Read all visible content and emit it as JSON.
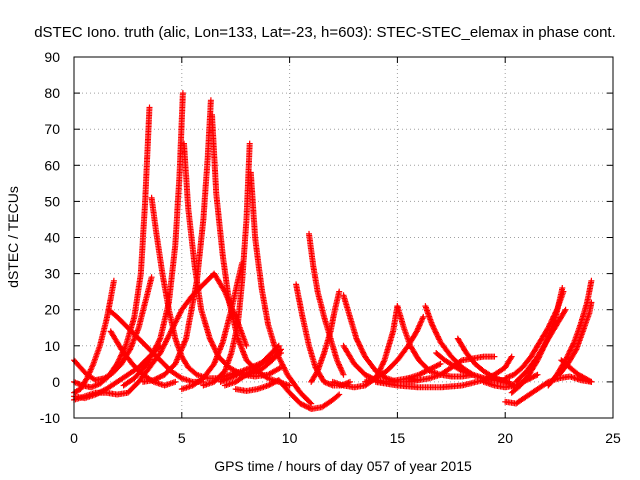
{
  "chart_data": {
    "type": "scatter",
    "title": "dSTEC Iono. truth (alic, Lon=133, Lat=-23, h=603): STEC-STEC_elemax in phase cont.",
    "xlabel": "GPS time / hours of day 057 of year 2015",
    "ylabel": "dSTEC  / TECUs",
    "xlim": [
      0,
      25
    ],
    "ylim": [
      -10,
      90
    ],
    "xticks": [
      0,
      5,
      10,
      15,
      20,
      25
    ],
    "yticks": [
      -10,
      0,
      10,
      20,
      30,
      40,
      50,
      60,
      70,
      80,
      90
    ],
    "grid": true,
    "marker": "plus",
    "color": "#ff0000",
    "series": [
      {
        "x": [
          0.0,
          0.3,
          0.6,
          0.9,
          1.2,
          1.5,
          1.7,
          1.85
        ],
        "y": [
          -3.0,
          -2.0,
          1.0,
          5.0,
          10.0,
          17.0,
          23.0,
          28.0
        ]
      },
      {
        "x": [
          0.0,
          0.4,
          0.8,
          1.2,
          1.6,
          2.0,
          2.4,
          2.8,
          3.1,
          3.3,
          3.5
        ],
        "y": [
          0.0,
          -1.0,
          -1.5,
          -0.5,
          1.5,
          5.0,
          10.0,
          18.0,
          30.0,
          50.0,
          76.0
        ]
      },
      {
        "x": [
          0.0,
          0.3,
          0.6,
          1.0,
          1.4,
          1.8,
          2.2,
          2.6,
          3.0,
          3.3,
          3.6
        ],
        "y": [
          6.0,
          4.0,
          2.0,
          0.5,
          1.0,
          2.5,
          5.0,
          9.0,
          15.0,
          22.0,
          29.0
        ]
      },
      {
        "x": [
          0.0,
          0.5,
          1.0,
          1.5,
          2.0,
          2.5,
          3.0,
          3.5,
          4.0,
          4.5,
          5.0,
          5.5,
          6.0,
          6.5,
          7.0,
          7.5,
          8.0
        ],
        "y": [
          -5.0,
          -4.0,
          -3.0,
          -3.0,
          -3.5,
          -3.0,
          0.0,
          4.0,
          8.0,
          14.0,
          20.0,
          24.0,
          27.0,
          30.0,
          25.0,
          18.0,
          10.0
        ]
      },
      {
        "x": [
          1.6,
          2.0,
          2.5,
          3.0,
          3.5,
          4.0,
          4.5,
          5.0,
          5.5,
          6.0
        ],
        "y": [
          20.0,
          18.0,
          15.0,
          12.0,
          9.0,
          6.0,
          3.0,
          1.0,
          0.0,
          0.0
        ]
      },
      {
        "x": [
          1.7,
          2.2,
          2.7,
          3.2,
          3.7,
          4.2,
          4.7
        ],
        "y": [
          14.0,
          9.0,
          5.0,
          2.0,
          0.0,
          -1.0,
          0.0
        ]
      },
      {
        "x": [
          3.6,
          3.8,
          4.1,
          4.4,
          4.7,
          5.0,
          5.3,
          5.7,
          6.2,
          6.7,
          7.2,
          7.8,
          8.4,
          9.0,
          9.6
        ],
        "y": [
          51.0,
          42.0,
          30.0,
          20.0,
          12.0,
          7.0,
          4.0,
          2.0,
          1.0,
          1.0,
          2.0,
          3.0,
          4.5,
          6.0,
          8.0
        ]
      },
      {
        "x": [
          2.3,
          2.8,
          3.4,
          4.0,
          4.4,
          4.7,
          4.9,
          5.05
        ],
        "y": [
          -1.0,
          1.0,
          5.0,
          12.0,
          22.0,
          38.0,
          58.0,
          80.0
        ]
      },
      {
        "x": [
          5.1,
          5.3,
          5.6,
          5.9,
          6.3,
          6.7,
          7.2,
          7.8,
          8.4,
          9.0,
          9.6
        ],
        "y": [
          66.0,
          48.0,
          32.0,
          20.0,
          12.0,
          7.0,
          4.0,
          2.0,
          1.5,
          2.0,
          4.0
        ]
      },
      {
        "x": [
          3.2,
          3.7,
          4.2,
          4.7,
          5.2,
          5.7,
          6.0,
          6.2,
          6.35
        ],
        "y": [
          0.0,
          0.5,
          2.0,
          5.0,
          12.0,
          28.0,
          45.0,
          62.0,
          78.0
        ]
      },
      {
        "x": [
          6.4,
          6.6,
          6.9,
          7.2,
          7.6,
          8.0,
          8.5,
          9.0,
          9.5,
          10.0
        ],
        "y": [
          74.0,
          52.0,
          35.0,
          22.0,
          12.0,
          6.0,
          3.0,
          1.0,
          0.0,
          -1.0
        ]
      },
      {
        "x": [
          5.0,
          5.5,
          6.0,
          6.5,
          6.9,
          7.3,
          7.6,
          7.8
        ],
        "y": [
          -2.0,
          -1.0,
          1.0,
          5.0,
          11.0,
          20.0,
          28.0,
          33.0
        ]
      },
      {
        "x": [
          6.0,
          6.5,
          7.0,
          7.3,
          7.6,
          7.8,
          8.0,
          8.15
        ],
        "y": [
          -1.0,
          0.0,
          3.0,
          8.0,
          16.0,
          28.0,
          45.0,
          66.0
        ]
      },
      {
        "x": [
          8.2,
          8.4,
          8.7,
          9.0,
          9.4,
          9.9,
          10.5,
          11.0
        ],
        "y": [
          58.0,
          40.0,
          26.0,
          16.0,
          8.0,
          2.0,
          -3.0,
          -6.0
        ]
      },
      {
        "x": [
          7.5,
          8.0,
          8.5,
          9.0,
          9.5,
          10.0,
          10.5,
          11.0,
          11.5,
          12.0,
          12.3
        ],
        "y": [
          -2.0,
          -2.5,
          -2.0,
          -1.0,
          0.5,
          -3.0,
          -6.0,
          -7.5,
          -7.0,
          -5.0,
          -3.5
        ]
      },
      {
        "x": [
          7.0,
          7.5,
          8.0,
          8.5,
          9.0,
          9.5
        ],
        "y": [
          -1.0,
          0.0,
          2.0,
          4.0,
          7.0,
          10.0
        ]
      },
      {
        "x": [
          6.8,
          7.2,
          7.6,
          8.0,
          8.4,
          8.8,
          9.2,
          9.6
        ],
        "y": [
          0.0,
          1.0,
          2.0,
          2.0,
          2.5,
          4.0,
          6.0,
          9.0
        ]
      },
      {
        "x": [
          10.3,
          10.6,
          10.9,
          11.2,
          11.6,
          12.0,
          12.4,
          12.8
        ],
        "y": [
          27.0,
          18.0,
          10.0,
          4.0,
          0.0,
          -1.0,
          -1.0,
          0.0
        ]
      },
      {
        "x": [
          10.9,
          11.1,
          11.3,
          11.6,
          11.9,
          12.2,
          12.5
        ],
        "y": [
          41.0,
          32.0,
          25.0,
          18.0,
          12.0,
          6.0,
          2.0
        ]
      },
      {
        "x": [
          11.0,
          11.3,
          11.6,
          11.9,
          12.1,
          12.3
        ],
        "y": [
          0.0,
          3.0,
          8.0,
          14.0,
          20.0,
          25.0
        ]
      },
      {
        "x": [
          12.5,
          12.8,
          13.1,
          13.5,
          14.0,
          14.5,
          15.0,
          15.5,
          16.0
        ],
        "y": [
          24.0,
          18.0,
          12.0,
          7.0,
          3.0,
          1.0,
          0.0,
          0.0,
          0.5
        ]
      },
      {
        "x": [
          12.5,
          13.0,
          13.5,
          14.0,
          14.5,
          15.0,
          15.5,
          16.0,
          16.5,
          17.0
        ],
        "y": [
          10.0,
          5.0,
          2.0,
          0.5,
          0.0,
          0.5,
          1.0,
          2.0,
          3.5,
          5.0
        ]
      },
      {
        "x": [
          12.0,
          12.5,
          13.0,
          13.5,
          14.0,
          14.4,
          14.8,
          15.0
        ],
        "y": [
          0.0,
          -1.0,
          -1.5,
          -1.0,
          1.0,
          6.0,
          14.0,
          21.0
        ]
      },
      {
        "x": [
          15.0,
          15.3,
          15.6,
          16.0,
          16.5,
          17.0,
          17.5,
          18.0,
          18.5
        ],
        "y": [
          21.0,
          15.0,
          10.0,
          6.0,
          3.0,
          2.0,
          1.5,
          1.5,
          2.0
        ]
      },
      {
        "x": [
          13.5,
          14.0,
          14.5,
          15.0,
          15.5,
          15.9,
          16.2
        ],
        "y": [
          0.0,
          1.0,
          3.0,
          6.0,
          10.0,
          14.0,
          18.0
        ]
      },
      {
        "x": [
          16.3,
          16.6,
          17.0,
          17.5,
          18.0,
          18.5,
          19.0,
          19.5,
          20.0
        ],
        "y": [
          21.0,
          16.0,
          11.0,
          7.0,
          4.0,
          2.0,
          1.0,
          0.5,
          0.5
        ]
      },
      {
        "x": [
          15.5,
          16.0,
          16.5,
          17.0,
          17.5,
          18.0,
          18.5,
          19.0,
          19.5
        ],
        "y": [
          1.0,
          0.5,
          1.0,
          2.0,
          4.0,
          6.0,
          6.5,
          7.0,
          7.0
        ]
      },
      {
        "x": [
          16.8,
          17.2,
          17.6,
          18.0,
          18.5,
          19.0,
          19.5,
          20.0,
          20.4
        ],
        "y": [
          8.0,
          6.0,
          4.5,
          3.0,
          2.0,
          1.0,
          0.5,
          0.0,
          -1.0
        ]
      },
      {
        "x": [
          14.0,
          15.0,
          16.0,
          17.0,
          18.0,
          19.0,
          19.5,
          20.0,
          20.3
        ],
        "y": [
          0.0,
          -1.0,
          -1.5,
          -1.5,
          -1.0,
          0.5,
          2.0,
          4.0,
          7.0
        ]
      },
      {
        "x": [
          17.8,
          18.2,
          18.6,
          19.0,
          19.4,
          19.8,
          20.2
        ],
        "y": [
          12.0,
          8.0,
          5.0,
          3.0,
          1.5,
          0.5,
          0.0
        ]
      },
      {
        "x": [
          20.0,
          20.5,
          21.0,
          21.5,
          22.0,
          22.5,
          23.0,
          23.5,
          24.0
        ],
        "y": [
          -5.5,
          -6.0,
          -4.0,
          -2.0,
          0.0,
          1.0,
          1.5,
          0.5,
          0.0
        ]
      },
      {
        "x": [
          20.3,
          20.7,
          21.1,
          21.5,
          21.9,
          22.3,
          22.5,
          22.65
        ],
        "y": [
          -3.0,
          -1.0,
          2.0,
          6.0,
          11.0,
          17.0,
          22.0,
          26.0
        ]
      },
      {
        "x": [
          20.5,
          21.0,
          21.5,
          22.0,
          22.4,
          22.8
        ],
        "y": [
          0.0,
          3.0,
          7.0,
          12.0,
          16.0,
          20.0
        ]
      },
      {
        "x": [
          20.0,
          20.4,
          20.8,
          21.2,
          21.6,
          22.0,
          22.4,
          22.7
        ],
        "y": [
          1.0,
          2.0,
          4.0,
          7.0,
          11.0,
          15.0,
          20.0,
          25.0
        ]
      },
      {
        "x": [
          22.0,
          22.4,
          22.8,
          23.2,
          23.5,
          23.8,
          24.0
        ],
        "y": [
          -1.0,
          2.0,
          6.0,
          11.0,
          16.0,
          22.0,
          28.0
        ]
      },
      {
        "x": [
          22.5,
          22.9,
          23.3,
          23.6,
          23.9,
          24.0
        ],
        "y": [
          2.0,
          5.0,
          9.0,
          14.0,
          19.0,
          22.0
        ]
      },
      {
        "x": [
          22.6,
          23.0,
          23.4,
          23.7,
          24.0
        ],
        "y": [
          6.0,
          4.0,
          2.0,
          1.0,
          0.0
        ]
      },
      {
        "x": [
          19.0,
          19.5,
          20.0,
          20.5,
          21.0,
          21.5
        ],
        "y": [
          0.0,
          -1.0,
          -1.5,
          -1.0,
          0.5,
          2.0
        ]
      },
      {
        "x": [
          0.0,
          0.5,
          1.0,
          1.5,
          2.0,
          2.5,
          3.0,
          3.5,
          4.0
        ],
        "y": [
          -4.0,
          -4.5,
          -3.5,
          -2.0,
          0.0,
          2.0,
          4.0,
          7.0,
          10.0
        ]
      }
    ]
  }
}
